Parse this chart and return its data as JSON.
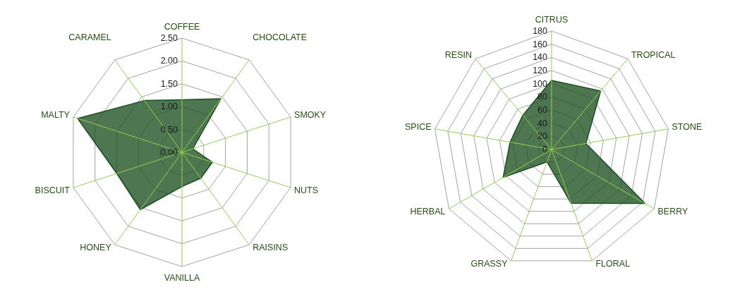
{
  "chart_data": [
    {
      "type": "radar",
      "categories": [
        "COFFEE",
        "CHOCOLATE",
        "SMOKY",
        "NUTS",
        "RAISINS",
        "VANILLA",
        "HONEY",
        "BISCUIT",
        "MALTY",
        "CARAMEL"
      ],
      "series": [
        {
          "color": "#1b4f20",
          "values": [
            1.15,
            1.45,
            0.25,
            0.7,
            0.7,
            0.75,
            1.55,
            1.5,
            2.4,
            1.4
          ]
        }
      ],
      "ylim": [
        0,
        2.5
      ],
      "yticks": [
        {
          "value": 0,
          "label": "0.00"
        },
        {
          "value": 0.5,
          "label": "0.50"
        },
        {
          "value": 1,
          "label": "1.00"
        },
        {
          "value": 1.5,
          "label": "1.50"
        },
        {
          "value": 2,
          "label": "2.00"
        },
        {
          "value": 2.5,
          "label": "2.50"
        }
      ],
      "grid": true
    },
    {
      "type": "radar",
      "categories": [
        "CITRUS",
        "TROPICAL",
        "STONE",
        "BERRY",
        "FLORAL",
        "GRASSY",
        "HERBAL",
        "SPICE",
        "RESIN"
      ],
      "series": [
        {
          "color": "#1b4f20",
          "values": [
            105,
            116,
            53,
            164,
            87,
            20,
            85,
            64,
            68
          ]
        }
      ],
      "ylim": [
        0,
        180
      ],
      "yticks": [
        0,
        20,
        40,
        60,
        80,
        100,
        120,
        140,
        160,
        180
      ],
      "grid": true
    }
  ]
}
